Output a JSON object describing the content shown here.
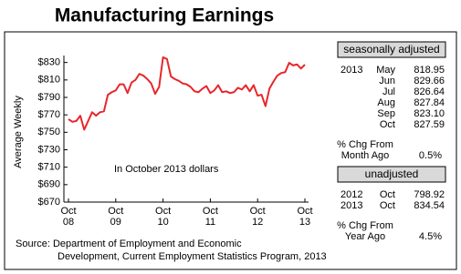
{
  "chart_data": {
    "type": "line",
    "title": "Manufacturing Earnings",
    "ylabel": "Average Weekly",
    "annotation": "In October 2013 dollars",
    "source": [
      "Source: Department of Employment and Economic",
      "Development, Current Employment Statistics Program, 2013"
    ],
    "color": "#e8262b",
    "categories": [
      "Oct 08",
      null,
      null,
      null,
      null,
      null,
      null,
      null,
      null,
      null,
      null,
      null,
      "Oct 09",
      null,
      null,
      null,
      null,
      null,
      null,
      null,
      null,
      null,
      null,
      null,
      "Oct 10",
      null,
      null,
      null,
      null,
      null,
      null,
      null,
      null,
      null,
      null,
      null,
      "Oct 11",
      null,
      null,
      null,
      null,
      null,
      null,
      null,
      null,
      null,
      null,
      null,
      "Oct 12",
      null,
      null,
      null,
      null,
      null,
      null,
      null,
      null,
      null,
      null,
      null,
      "Oct 13"
    ],
    "values": [
      765,
      762,
      763,
      769,
      753,
      763,
      773,
      769,
      773,
      774,
      793,
      796,
      798,
      805,
      805,
      795,
      807,
      810,
      817,
      815,
      811,
      806,
      794,
      802,
      836,
      834,
      814,
      811,
      809,
      806,
      805,
      802,
      797,
      796,
      800,
      803,
      795,
      798,
      804,
      796,
      797,
      795,
      796,
      801,
      799,
      804,
      797,
      804,
      792,
      793,
      780,
      800,
      808,
      815,
      818,
      818.95,
      829.66,
      826.64,
      827.84,
      823.1,
      827.59
    ],
    "ylim": [
      670,
      838
    ],
    "yticks": [
      {
        "value": 670,
        "label": "$670"
      },
      {
        "value": 690,
        "label": "$690"
      },
      {
        "value": 710,
        "label": "$710"
      },
      {
        "value": 730,
        "label": "$730"
      },
      {
        "value": 750,
        "label": "$750"
      },
      {
        "value": 770,
        "label": "$770"
      },
      {
        "value": 790,
        "label": "$790"
      },
      {
        "value": 810,
        "label": "$810"
      },
      {
        "value": 830,
        "label": "$830"
      }
    ],
    "grid": false
  },
  "side_panel": {
    "seasonally_adjusted": {
      "title": "seasonally adjusted",
      "rows": [
        {
          "year": "2013",
          "month": "May",
          "value": "818.95"
        },
        {
          "month": "Jun",
          "value": "829.66"
        },
        {
          "month": "Jul",
          "value": "826.64"
        },
        {
          "month": "Aug",
          "value": "827.84"
        },
        {
          "month": "Sep",
          "value": "823.10"
        },
        {
          "month": "Oct",
          "value": "827.59"
        }
      ],
      "change": {
        "lines": [
          "% Chg From",
          "Month Ago"
        ],
        "value": "0.5%"
      }
    },
    "unadjusted": {
      "title": "unadjusted",
      "rows": [
        {
          "year": "2012",
          "month": "Oct",
          "value": "798.92"
        },
        {
          "year": "2013",
          "month": "Oct",
          "value": "834.54"
        }
      ],
      "change": {
        "lines": [
          "% Chg From",
          "Year Ago"
        ],
        "value": "4.5%"
      }
    }
  }
}
